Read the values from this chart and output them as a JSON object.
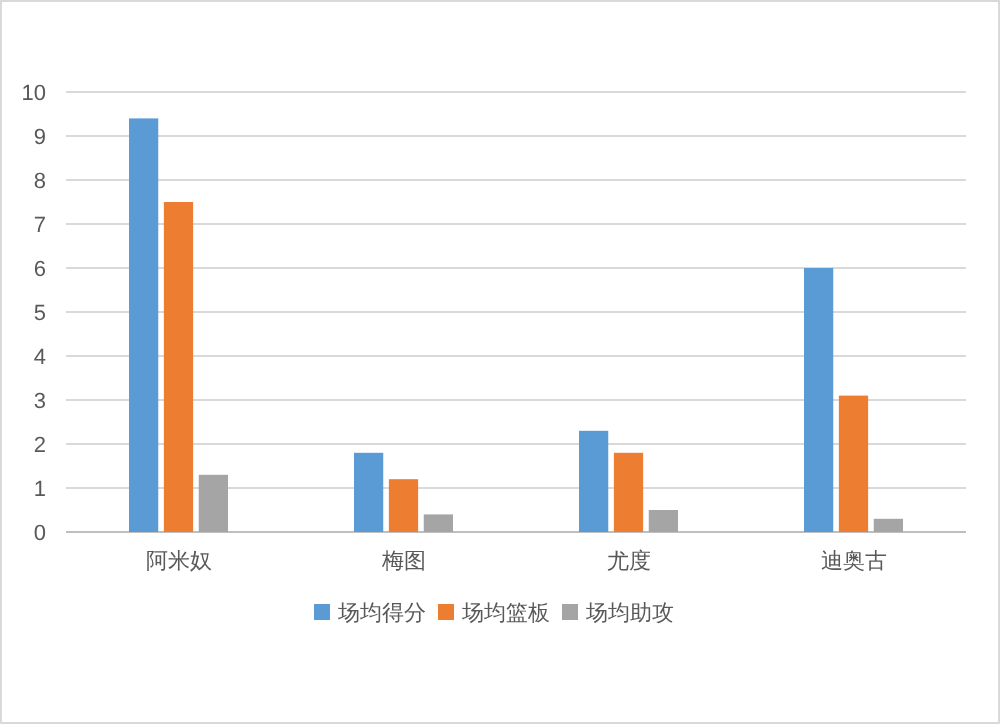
{
  "chart_data": {
    "type": "bar",
    "categories": [
      "阿米奴",
      "梅图",
      "尤度",
      "迪奥古"
    ],
    "series": [
      {
        "name": "场均得分",
        "color": "#5b9bd5",
        "values": [
          9.4,
          1.8,
          2.3,
          6.0
        ]
      },
      {
        "name": "场均篮板",
        "color": "#ed7d31",
        "values": [
          7.5,
          1.2,
          1.8,
          3.1
        ]
      },
      {
        "name": "场均助攻",
        "color": "#a5a5a5",
        "values": [
          1.3,
          0.4,
          0.5,
          0.3
        ]
      }
    ],
    "ylim": [
      0,
      10
    ],
    "yticks": [
      0,
      1,
      2,
      3,
      4,
      5,
      6,
      7,
      8,
      9,
      10
    ],
    "grid": "y",
    "legend": "bottom"
  }
}
